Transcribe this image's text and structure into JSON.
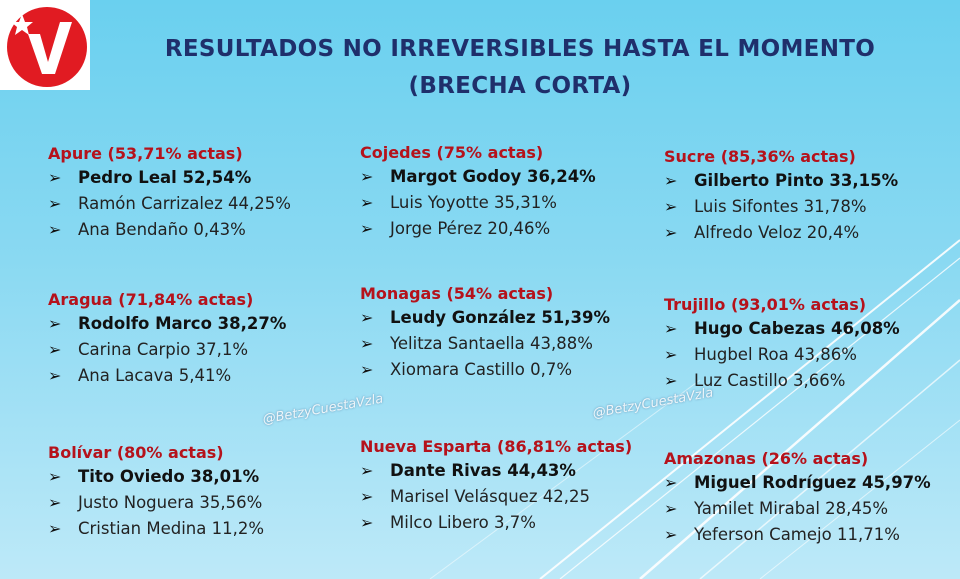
{
  "header": {
    "title_line1": "RESULTADOS NO IRREVERSIBLES  HASTA EL MOMENTO",
    "title_line2": "(BRECHA CORTA)"
  },
  "watermarks": [
    "@BetzyCuestaVzla",
    "@BetzyCuestaVzla"
  ],
  "colors": {
    "state": "#b5121b",
    "title": "#1f2f6b",
    "logo_red": "#e11b22"
  },
  "states": [
    {
      "header": "Apure (53,71% actas)",
      "candidates": [
        "Pedro Leal 52,54%",
        "Ramón Carrizalez 44,25%",
        "Ana Bendaño 0,43%"
      ]
    },
    {
      "header": "Cojedes (75% actas)",
      "candidates": [
        "Margot Godoy 36,24%",
        "Luis Yoyotte 35,31%",
        "Jorge Pérez 20,46%"
      ]
    },
    {
      "header": "Sucre (85,36% actas)",
      "candidates": [
        "Gilberto Pinto 33,15%",
        "Luis Sifontes 31,78%",
        "Alfredo Veloz 20,4%"
      ]
    },
    {
      "header": "Aragua (71,84% actas)",
      "candidates": [
        "Rodolfo Marco 38,27%",
        "Carina Carpio 37,1%",
        "Ana Lacava 5,41%"
      ]
    },
    {
      "header": "Monagas (54% actas)",
      "candidates": [
        "Leudy González 51,39%",
        "Yelitza Santaella 43,88%",
        "Xiomara Castillo 0,7%"
      ]
    },
    {
      "header": "Trujillo (93,01% actas)",
      "candidates": [
        "Hugo Cabezas 46,08%",
        "Hugbel Roa 43,86%",
        "Luz Castillo 3,66%"
      ]
    },
    {
      "header": "Bolívar (80% actas)",
      "candidates": [
        "Tito Oviedo 38,01%",
        "Justo Noguera 35,56%",
        "Cristian Medina 11,2%"
      ]
    },
    {
      "header": "Nueva Esparta (86,81% actas)",
      "candidates": [
        "Dante Rivas 44,43%",
        "Marisel Velásquez 42,25",
        "Milco Libero 3,7%"
      ]
    },
    {
      "header": "Amazonas (26% actas)",
      "candidates": [
        "Miguel Rodríguez 45,97%",
        "Yamilet Mirabal 28,45%",
        "Yeferson  Camejo 11,71%"
      ]
    }
  ]
}
